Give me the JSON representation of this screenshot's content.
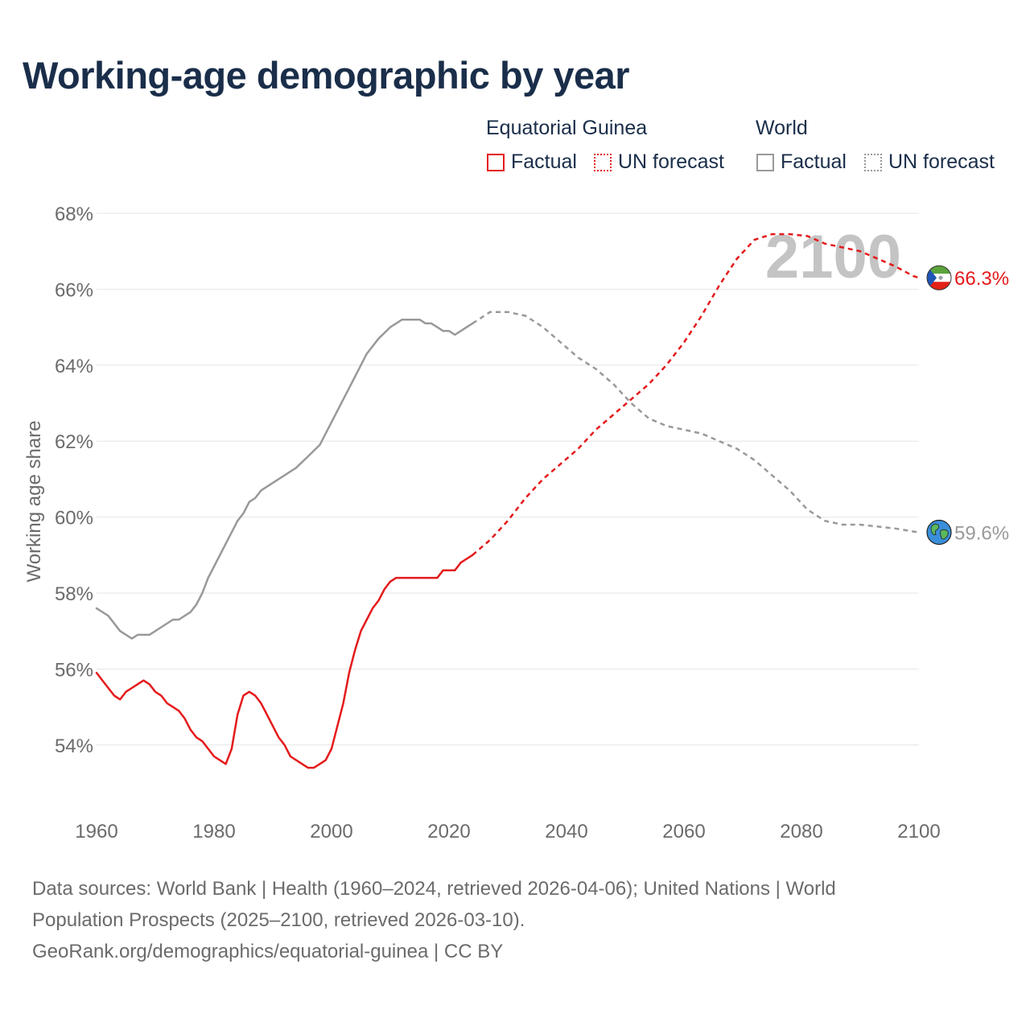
{
  "title": "Working-age demographic by year",
  "legend": {
    "groups": [
      {
        "title": "Equatorial Guinea",
        "items": [
          "Factual",
          "UN forecast"
        ],
        "color": "#e41a1c"
      },
      {
        "title": "World",
        "items": [
          "Factual",
          "UN forecast"
        ],
        "color": "#999999"
      }
    ]
  },
  "footer": {
    "line1": "Data sources: World Bank | Health (1960–2024, retrieved 2026-04-06); United Nations | World",
    "line2": "Population Prospects (2025–2100, retrieved 2026-03-10).",
    "line3": "GeoRank.org/demographics/equatorial-guinea | CC BY"
  },
  "chart_data": {
    "type": "line",
    "title": "Working-age demographic by year",
    "xlabel": "",
    "ylabel": "Working age share",
    "xlim": [
      1960,
      2100
    ],
    "ylim": [
      52,
      68.5
    ],
    "x_ticks": [
      1960,
      1980,
      2000,
      2020,
      2040,
      2060,
      2080,
      2100
    ],
    "x_tick_labels": [
      "1960",
      "1980",
      "2000",
      "2020",
      "2040",
      "2060",
      "2080",
      "2100"
    ],
    "y_ticks": [
      54,
      56,
      58,
      60,
      62,
      64,
      66,
      68
    ],
    "y_tick_labels": [
      "54%",
      "56%",
      "58%",
      "60%",
      "62%",
      "64%",
      "66%",
      "68%"
    ],
    "grid": true,
    "year_label": "2100",
    "series": [
      {
        "name": "Equatorial Guinea",
        "color": "#e41a1c",
        "end_label": "66.3%",
        "icon": "equatorial-guinea-flag-icon",
        "factual": {
          "x": [
            1960,
            1961,
            1962,
            1963,
            1964,
            1965,
            1966,
            1967,
            1968,
            1969,
            1970,
            1971,
            1972,
            1973,
            1974,
            1975,
            1976,
            1977,
            1978,
            1979,
            1980,
            1981,
            1982,
            1983,
            1984,
            1985,
            1986,
            1987,
            1988,
            1989,
            1990,
            1991,
            1992,
            1993,
            1994,
            1995,
            1996,
            1997,
            1998,
            1999,
            2000,
            2001,
            2002,
            2003,
            2004,
            2005,
            2006,
            2007,
            2008,
            2009,
            2010,
            2011,
            2012,
            2013,
            2014,
            2015,
            2016,
            2017,
            2018,
            2019,
            2020,
            2021,
            2022,
            2023,
            2024
          ],
          "y": [
            55.9,
            55.7,
            55.5,
            55.3,
            55.2,
            55.4,
            55.5,
            55.6,
            55.7,
            55.6,
            55.4,
            55.3,
            55.1,
            55.0,
            54.9,
            54.7,
            54.4,
            54.2,
            54.1,
            53.9,
            53.7,
            53.6,
            53.5,
            53.9,
            54.8,
            55.3,
            55.4,
            55.3,
            55.1,
            54.8,
            54.5,
            54.2,
            54.0,
            53.7,
            53.6,
            53.5,
            53.4,
            53.4,
            53.5,
            53.6,
            53.9,
            54.5,
            55.1,
            55.9,
            56.5,
            57.0,
            57.3,
            57.6,
            57.8,
            58.1,
            58.3,
            58.4,
            58.4,
            58.4,
            58.4,
            58.4,
            58.4,
            58.4,
            58.4,
            58.6,
            58.6,
            58.6,
            58.8,
            58.9,
            59.0
          ]
        },
        "forecast": {
          "x": [
            2024,
            2027,
            2030,
            2033,
            2036,
            2039,
            2042,
            2045,
            2048,
            2051,
            2054,
            2057,
            2060,
            2063,
            2066,
            2069,
            2072,
            2075,
            2078,
            2081,
            2084,
            2087,
            2090,
            2093,
            2096,
            2099,
            2100
          ],
          "y": [
            59.0,
            59.4,
            59.9,
            60.5,
            61.0,
            61.4,
            61.8,
            62.3,
            62.7,
            63.1,
            63.5,
            64.0,
            64.6,
            65.3,
            66.1,
            66.8,
            67.3,
            67.45,
            67.45,
            67.4,
            67.2,
            67.1,
            67.0,
            66.8,
            66.6,
            66.35,
            66.3
          ]
        }
      },
      {
        "name": "World",
        "color": "#999999",
        "end_label": "59.6%",
        "icon": "world-globe-icon",
        "factual": {
          "x": [
            1960,
            1962,
            1964,
            1966,
            1967,
            1969,
            1971,
            1973,
            1974,
            1976,
            1977,
            1978,
            1979,
            1980,
            1982,
            1984,
            1985,
            1986,
            1987,
            1988,
            1990,
            1992,
            1994,
            1996,
            1998,
            2000,
            2002,
            2004,
            2006,
            2008,
            2010,
            2011,
            2012,
            2013,
            2014,
            2015,
            2016,
            2017,
            2018,
            2019,
            2020,
            2021,
            2022,
            2023,
            2024
          ],
          "y": [
            57.6,
            57.4,
            57.0,
            56.8,
            56.9,
            56.9,
            57.1,
            57.3,
            57.3,
            57.5,
            57.7,
            58.0,
            58.4,
            58.7,
            59.3,
            59.9,
            60.1,
            60.4,
            60.5,
            60.7,
            60.9,
            61.1,
            61.3,
            61.6,
            61.9,
            62.5,
            63.1,
            63.7,
            64.3,
            64.7,
            65.0,
            65.1,
            65.2,
            65.2,
            65.2,
            65.2,
            65.1,
            65.1,
            65.0,
            64.9,
            64.9,
            64.8,
            64.9,
            65.0,
            65.1
          ]
        },
        "forecast": {
          "x": [
            2024,
            2027,
            2030,
            2033,
            2036,
            2039,
            2042,
            2045,
            2048,
            2051,
            2054,
            2057,
            2060,
            2063,
            2066,
            2069,
            2072,
            2075,
            2078,
            2081,
            2084,
            2087,
            2090,
            2093,
            2096,
            2099,
            2100
          ],
          "y": [
            65.1,
            65.4,
            65.4,
            65.3,
            65.0,
            64.6,
            64.2,
            63.9,
            63.5,
            63.0,
            62.6,
            62.4,
            62.3,
            62.2,
            62.0,
            61.8,
            61.5,
            61.1,
            60.7,
            60.2,
            59.9,
            59.8,
            59.8,
            59.75,
            59.7,
            59.62,
            59.6
          ]
        }
      }
    ]
  }
}
